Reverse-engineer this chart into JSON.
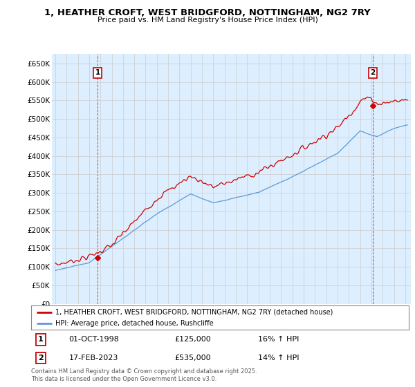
{
  "title": "1, HEATHER CROFT, WEST BRIDGFORD, NOTTINGHAM, NG2 7RY",
  "subtitle": "Price paid vs. HM Land Registry's House Price Index (HPI)",
  "ylabel_ticks": [
    "£0",
    "£50K",
    "£100K",
    "£150K",
    "£200K",
    "£250K",
    "£300K",
    "£350K",
    "£400K",
    "£450K",
    "£500K",
    "£550K",
    "£600K",
    "£650K"
  ],
  "ytick_values": [
    0,
    50000,
    100000,
    150000,
    200000,
    250000,
    300000,
    350000,
    400000,
    450000,
    500000,
    550000,
    600000,
    650000
  ],
  "ylim": [
    0,
    675000
  ],
  "xlim_start": 1994.7,
  "xlim_end": 2026.5,
  "legend_line1": "1, HEATHER CROFT, WEST BRIDGFORD, NOTTINGHAM, NG2 7RY (detached house)",
  "legend_line2": "HPI: Average price, detached house, Rushcliffe",
  "sale1_label": "1",
  "sale1_date": "01-OCT-1998",
  "sale1_price": "£125,000",
  "sale1_hpi": "16% ↑ HPI",
  "sale2_label": "2",
  "sale2_date": "17-FEB-2023",
  "sale2_price": "£535,000",
  "sale2_hpi": "14% ↑ HPI",
  "footer": "Contains HM Land Registry data © Crown copyright and database right 2025.\nThis data is licensed under the Open Government Licence v3.0.",
  "color_red": "#cc0000",
  "color_blue": "#5b9bd5",
  "color_grid": "#cccccc",
  "color_bg_chart": "#ddeeff",
  "color_bg_fig": "#ffffff",
  "sale1_x": 1998.75,
  "sale1_y": 125000,
  "sale2_x": 2023.12,
  "sale2_y": 535000,
  "hpi_seed": 10,
  "prop_seed": 7
}
